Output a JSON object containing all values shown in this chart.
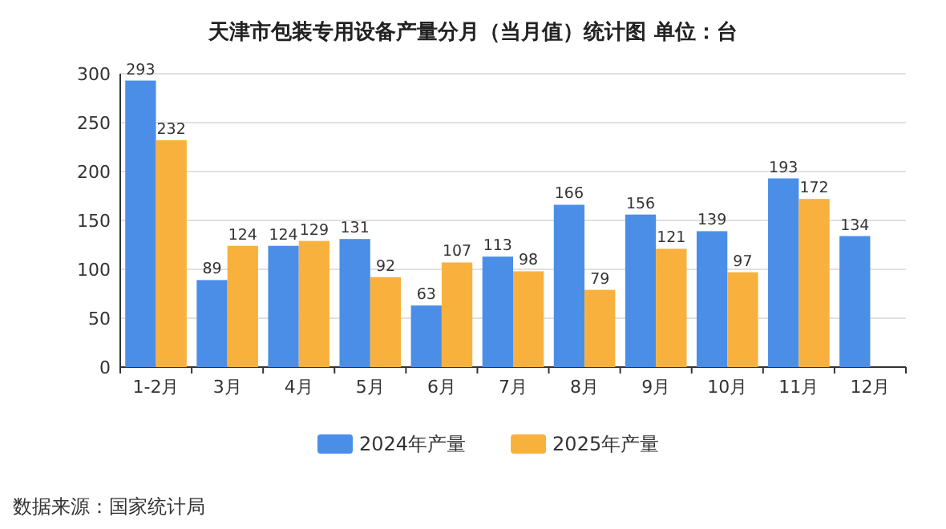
{
  "chart_data": {
    "type": "bar",
    "title": "天津市包装专用设备产量分月（当月值）统计图 单位：台",
    "categories": [
      "1-2月",
      "3月",
      "4月",
      "5月",
      "6月",
      "7月",
      "8月",
      "9月",
      "10月",
      "11月",
      "12月"
    ],
    "series": [
      {
        "name": "2024年产量",
        "color": "#4b8ee8",
        "values": [
          293,
          89,
          124,
          131,
          63,
          113,
          166,
          156,
          139,
          193,
          134
        ]
      },
      {
        "name": "2025年产量",
        "color": "#f9b13e",
        "values": [
          232,
          124,
          129,
          92,
          107,
          98,
          79,
          121,
          97,
          172,
          null
        ]
      }
    ],
    "ylim": [
      0,
      300
    ],
    "yticks": [
      0,
      50,
      100,
      150,
      200,
      250,
      300
    ],
    "grid": "y",
    "legend": "bottom",
    "data_labels": true,
    "annotations": [
      "数据来源：国家统计局"
    ]
  }
}
